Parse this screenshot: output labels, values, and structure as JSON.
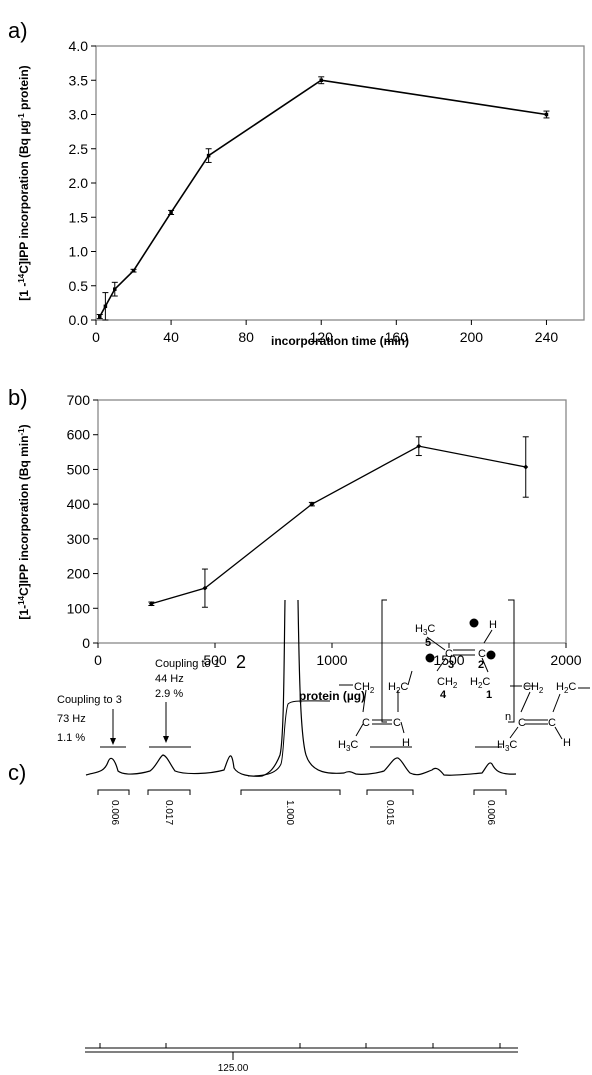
{
  "chart_data": [
    {
      "type": "line",
      "panel_label": "a)",
      "xlabel": "incorporation time (min)",
      "ylabel": "[1-14C]IPP incorporation (Bq µg-1 protein)",
      "xlim": [
        0,
        260
      ],
      "ylim": [
        0,
        4.0
      ],
      "xticks": [
        0,
        40,
        80,
        120,
        160,
        200,
        240
      ],
      "yticks": [
        "0.0",
        "0.5",
        "1.0",
        "1.5",
        "2.0",
        "2.5",
        "3.0",
        "3.5",
        "4.0"
      ],
      "grid": false,
      "series": [
        {
          "x": [
            2,
            5,
            10,
            20,
            40,
            60,
            120,
            240
          ],
          "y": [
            0.05,
            0.2,
            0.45,
            0.72,
            1.57,
            2.4,
            3.5,
            3.0
          ],
          "err": [
            0.03,
            0.2,
            0.1,
            0.02,
            0.03,
            0.1,
            0.05,
            0.05
          ]
        }
      ]
    },
    {
      "type": "line",
      "panel_label": "b)",
      "xlabel": "protein (µg)",
      "ylabel": "[1-14C]IPP incorporation (Bq min-1)",
      "xlim": [
        0,
        2000
      ],
      "ylim": [
        0,
        700
      ],
      "xticks": [
        0,
        500,
        1000,
        1500,
        2000
      ],
      "yticks": [
        0,
        100,
        200,
        300,
        400,
        500,
        600,
        700
      ],
      "grid": false,
      "series": [
        {
          "x": [
            228,
            457,
            914,
            1371,
            1828
          ],
          "y": [
            113,
            158,
            400,
            567,
            507
          ],
          "err": [
            5,
            55,
            5,
            27,
            87
          ]
        }
      ]
    },
    {
      "type": "spectrum",
      "panel_label": "c)",
      "peak_label": "2",
      "annotations": [
        {
          "lines": [
            "Coupling to 3",
            "73 Hz",
            "1.1 %"
          ]
        },
        {
          "lines": [
            "Coupling to 1",
            "44 Hz",
            "2.9 %"
          ]
        }
      ],
      "integrals": [
        "0.006",
        "0.017",
        "1.000",
        "0.015",
        "0.006"
      ],
      "ppm_label": "125.00",
      "structure_labels": {
        "h3c": "H3C",
        "c": "C",
        "h": "H",
        "h2c": "H2C",
        "ch2": "CH2",
        "n": "n",
        "num1": "1",
        "num2": "2",
        "num3": "3",
        "num4": "4",
        "num5": "5"
      }
    }
  ]
}
